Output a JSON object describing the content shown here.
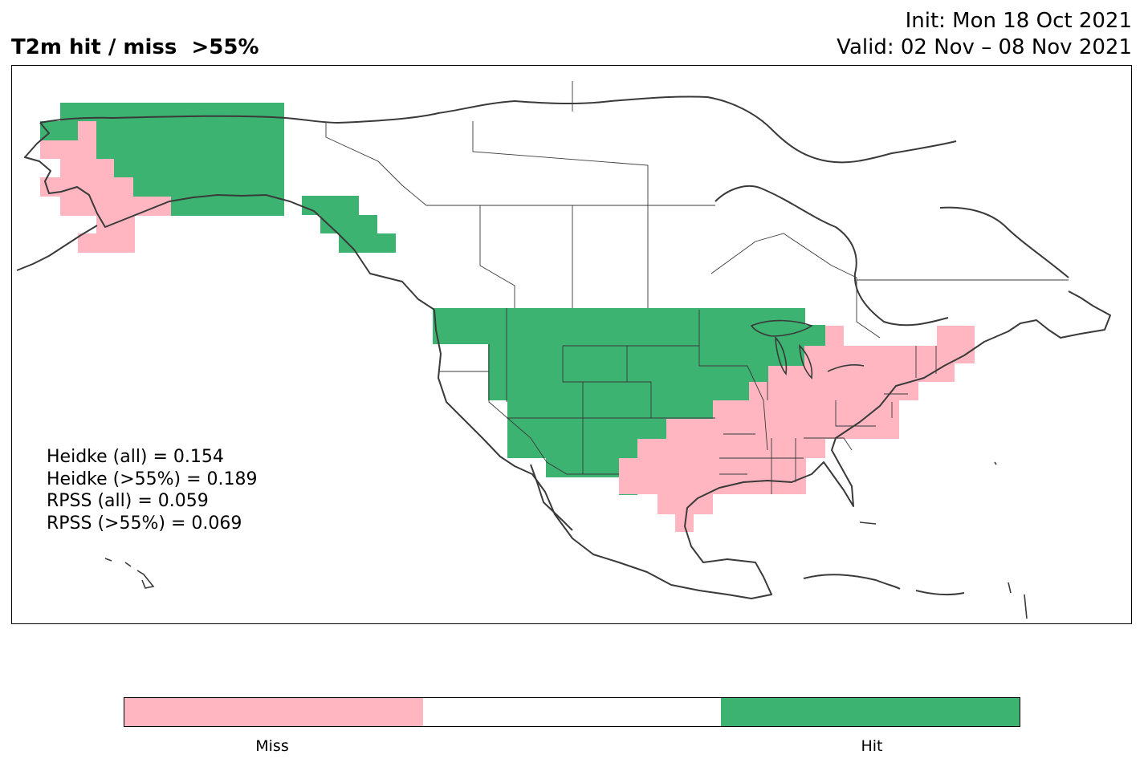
{
  "title": "T2m hit / miss  >55%",
  "init_line": "Init: Mon 18 Oct 2021",
  "valid_line": "Valid: 02 Nov – 08 Nov 2021",
  "stats": {
    "heidke_all": "Heidke (all) = 0.154",
    "heidke_55": "Heidke (>55%) = 0.189",
    "rpss_all": "RPSS (all) = 0.059",
    "rpss_55": "RPSS (>55%) = 0.069"
  },
  "colors": {
    "miss": "#ffb6c1",
    "neutral": "#ffffff",
    "hit": "#3cb371",
    "coast": "#3a3a3a"
  },
  "legend": {
    "miss_label": "Miss",
    "hit_label": "Hit"
  }
}
